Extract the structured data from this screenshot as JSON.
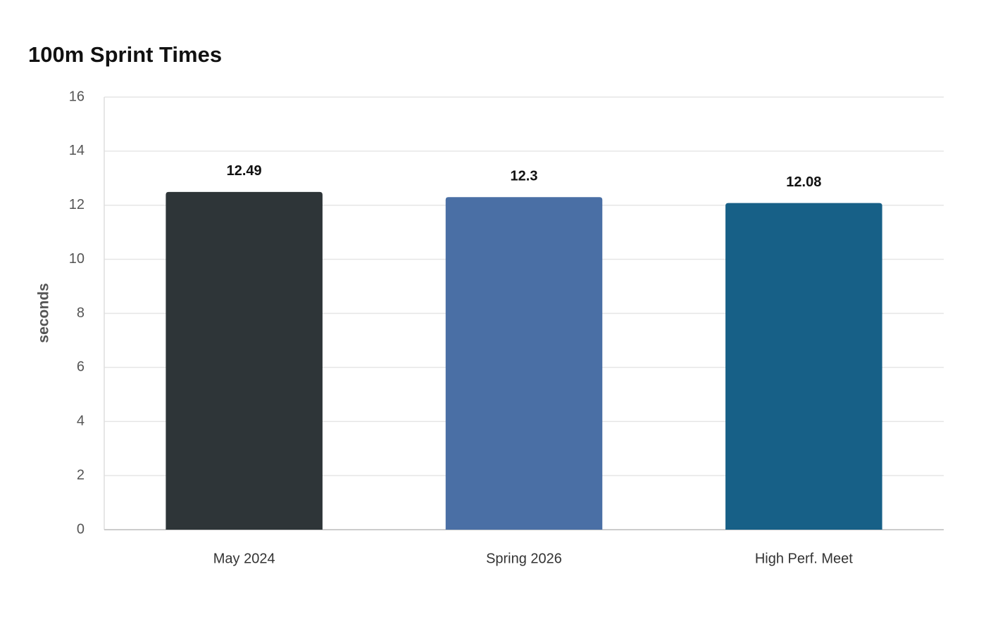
{
  "chart_data": {
    "type": "bar",
    "title": "100m Sprint Times",
    "y_label": "seconds",
    "categories": [
      "May 2024",
      "Spring 2026",
      "High Perf. Meet"
    ],
    "values": [
      12.49,
      12.3,
      12.08
    ],
    "colors": [
      "#2e3538",
      "#4a6fa5",
      "#176087"
    ],
    "ylim": [
      0,
      16
    ],
    "yticks": [
      0,
      2,
      4,
      6,
      8,
      10,
      12,
      14,
      16
    ],
    "grid": true
  }
}
